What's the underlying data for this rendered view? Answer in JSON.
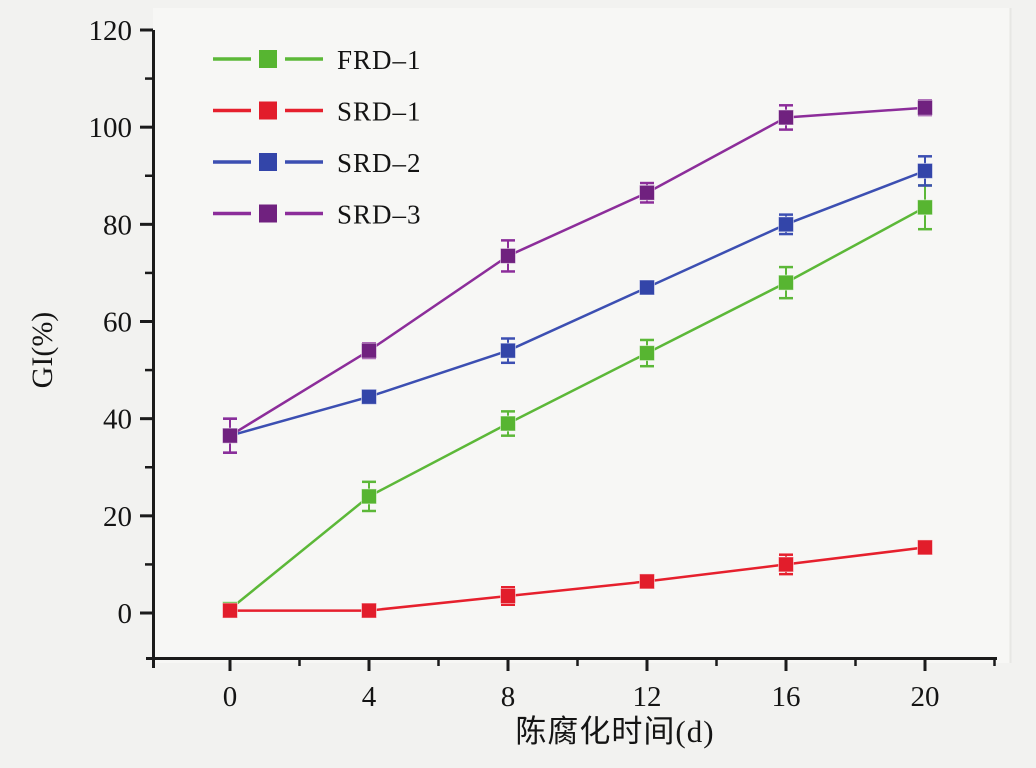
{
  "figure": {
    "page_background": "#f2f2f0",
    "plot_background": "#f7f7f5",
    "axis_color": "#1b1b1b",
    "text_color": "#141414"
  },
  "chart_data": {
    "type": "line",
    "title": "",
    "xlabel": "陈腐化时间(d)",
    "ylabel": "GI(%)",
    "grid": false,
    "legend_position": "top-left",
    "xlim": [
      -2.2,
      22
    ],
    "ylim": [
      -9.3,
      120
    ],
    "x_major_ticks": [
      0,
      4,
      8,
      12,
      16,
      20
    ],
    "x_minor_ticks": [
      2,
      6,
      10,
      14,
      18,
      22
    ],
    "y_major_ticks": [
      0,
      20,
      40,
      60,
      80,
      100,
      120
    ],
    "y_minor_ticks": [
      10,
      30,
      50,
      70,
      90,
      110
    ],
    "x": [
      0,
      4,
      8,
      12,
      16,
      20
    ],
    "series": [
      {
        "name": "FRD–1",
        "line_color": "#5cb838",
        "marker_color": "#57b531",
        "marker": "square",
        "values": [
          0.8,
          24,
          39,
          53.5,
          68,
          83.5
        ],
        "errors": [
          0.5,
          3,
          2.5,
          2.7,
          3.2,
          4.5
        ]
      },
      {
        "name": "SRD–1",
        "line_color": "#e6202d",
        "marker_color": "#e21d2b",
        "marker": "square",
        "values": [
          0.5,
          0.5,
          3.5,
          6.5,
          10,
          13.5
        ],
        "errors": [
          0.5,
          0.5,
          1.8,
          1.2,
          2,
          1
        ]
      },
      {
        "name": "SRD–2",
        "line_color": "#3c4fb2",
        "marker_color": "#3345a9",
        "marker": "square",
        "values": [
          36.5,
          44.5,
          54,
          67,
          80,
          91
        ],
        "errors": [
          3.5,
          1.2,
          2.5,
          1.2,
          2,
          3
        ]
      },
      {
        "name": "SRD–3",
        "line_color": "#8c2d9a",
        "marker_color": "#70217f",
        "marker": "square",
        "values": [
          36.5,
          54,
          73.5,
          86.5,
          102,
          104
        ],
        "errors": [
          3.5,
          1.5,
          3.2,
          2,
          2.5,
          1.5
        ]
      }
    ]
  }
}
